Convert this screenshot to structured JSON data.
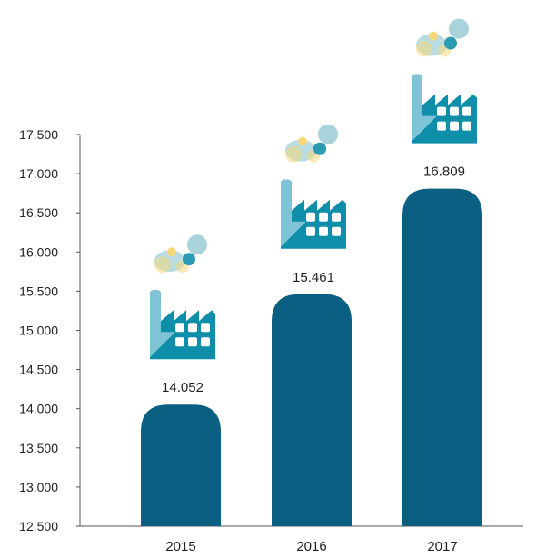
{
  "chart_data": {
    "type": "bar",
    "categories": [
      "2015",
      "2016",
      "2017"
    ],
    "values": [
      14052,
      15461,
      16809
    ],
    "value_labels": [
      "14.052",
      "15.461",
      "16.809"
    ],
    "ylim": [
      12500,
      17500
    ],
    "yticks": [
      12500,
      13000,
      13500,
      14000,
      14500,
      15000,
      15500,
      16000,
      16500,
      17000,
      17500
    ],
    "ytick_labels": [
      "12.500",
      "13.000",
      "13.500",
      "14.000",
      "14.500",
      "15.000",
      "15.500",
      "16.000",
      "16.500",
      "17.000",
      "17.500"
    ],
    "grid": false,
    "legend": "none",
    "title": "",
    "xlabel": "",
    "ylabel": ""
  },
  "icons": {
    "bar_decoration": "factory-smoke-icon"
  },
  "colors": {
    "bar": "#0b5f82",
    "axis": "#555555",
    "factory_teal": "#0e8ea8",
    "factory_light": "#7fc3d6",
    "smoke_pale": "#a9d3da",
    "smoke_cloud": "#b9dce3",
    "smoke_yellow": "#f6d77a",
    "smoke_teal": "#2a9bb2"
  }
}
